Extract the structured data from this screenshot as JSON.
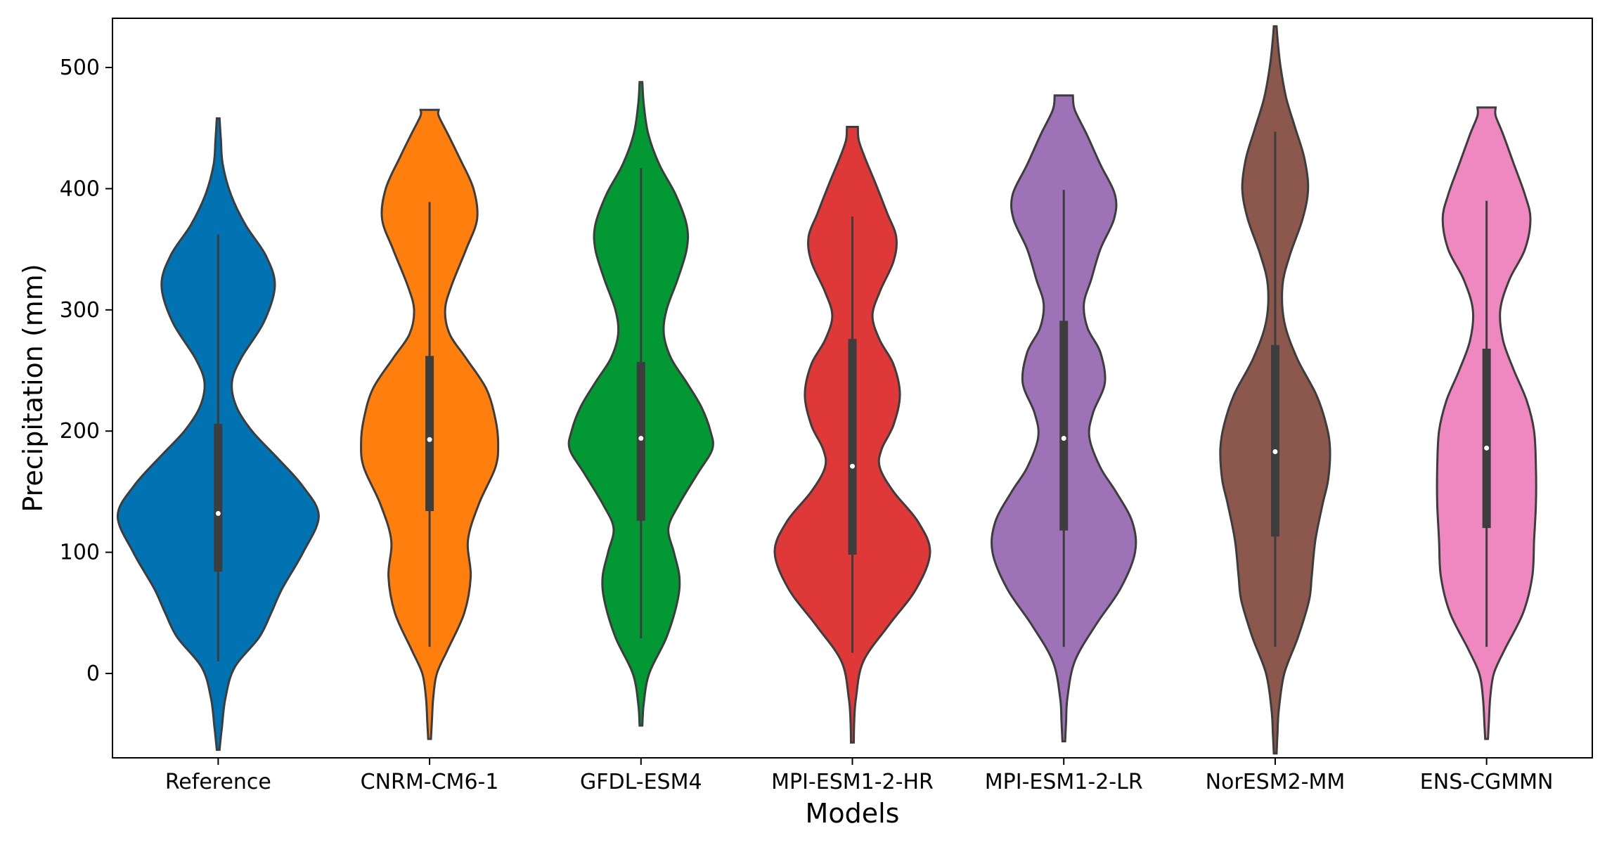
{
  "chart_data": {
    "type": "violin",
    "title": "",
    "xlabel": "Models",
    "ylabel": "Precipitation (mm)",
    "ylim": [
      -70,
      540
    ],
    "yticks": [
      0,
      100,
      200,
      300,
      400,
      500
    ],
    "ytick_labels": [
      "0",
      "100",
      "200",
      "300",
      "400",
      "500"
    ],
    "grid": false,
    "series": [
      {
        "name": "Reference",
        "color": "#0173b2",
        "min": -63,
        "max": 458,
        "whisker_low": 10,
        "whisker_high": 362,
        "q1": 84,
        "median": 132,
        "q3": 206,
        "density": [
          [
            -63,
            1.5
          ],
          [
            -45,
            4
          ],
          [
            -20,
            8
          ],
          [
            5,
            18
          ],
          [
            30,
            45
          ],
          [
            50,
            58
          ],
          [
            70,
            70
          ],
          [
            100,
            93
          ],
          [
            130,
            110
          ],
          [
            155,
            92
          ],
          [
            180,
            62
          ],
          [
            200,
            37
          ],
          [
            220,
            20
          ],
          [
            240,
            15
          ],
          [
            260,
            25
          ],
          [
            290,
            50
          ],
          [
            320,
            62
          ],
          [
            345,
            52
          ],
          [
            370,
            30
          ],
          [
            395,
            14
          ],
          [
            420,
            5
          ],
          [
            440,
            3
          ],
          [
            458,
            1.5
          ]
        ]
      },
      {
        "name": "CNRM-CM6-1",
        "color": "#ff7f0e",
        "min": -54,
        "max": 465,
        "whisker_low": 22,
        "whisker_high": 389,
        "q1": 134,
        "median": 193,
        "q3": 262,
        "density": [
          [
            -54,
            1.5
          ],
          [
            -40,
            2.5
          ],
          [
            -20,
            4
          ],
          [
            0,
            8
          ],
          [
            20,
            20
          ],
          [
            50,
            38
          ],
          [
            80,
            45
          ],
          [
            110,
            42
          ],
          [
            140,
            54
          ],
          [
            170,
            72
          ],
          [
            190,
            75
          ],
          [
            210,
            72
          ],
          [
            235,
            62
          ],
          [
            260,
            40
          ],
          [
            280,
            22
          ],
          [
            300,
            17
          ],
          [
            320,
            24
          ],
          [
            350,
            40
          ],
          [
            375,
            52
          ],
          [
            400,
            48
          ],
          [
            425,
            33
          ],
          [
            445,
            20
          ],
          [
            460,
            10
          ],
          [
            465,
            10
          ]
        ]
      },
      {
        "name": "GFDL-ESM4",
        "color": "#029833",
        "min": -43,
        "max": 488,
        "whisker_low": 29,
        "whisker_high": 417,
        "q1": 126,
        "median": 194,
        "q3": 257,
        "density": [
          [
            -43,
            1.5
          ],
          [
            -25,
            3
          ],
          [
            0,
            9
          ],
          [
            30,
            28
          ],
          [
            60,
            40
          ],
          [
            80,
            42
          ],
          [
            100,
            36
          ],
          [
            120,
            30
          ],
          [
            140,
            42
          ],
          [
            165,
            62
          ],
          [
            185,
            78
          ],
          [
            200,
            76
          ],
          [
            220,
            66
          ],
          [
            240,
            50
          ],
          [
            260,
            33
          ],
          [
            280,
            25
          ],
          [
            300,
            28
          ],
          [
            325,
            40
          ],
          [
            350,
            50
          ],
          [
            370,
            50
          ],
          [
            395,
            38
          ],
          [
            420,
            20
          ],
          [
            445,
            8
          ],
          [
            470,
            3
          ],
          [
            488,
            1.5
          ]
        ]
      },
      {
        "name": "MPI-ESM1-2-HR",
        "color": "#de3838",
        "min": -57,
        "max": 451,
        "whisker_low": 17,
        "whisker_high": 377,
        "q1": 98,
        "median": 171,
        "q3": 276,
        "density": [
          [
            -57,
            1.5
          ],
          [
            -40,
            2
          ],
          [
            -20,
            4
          ],
          [
            10,
            12
          ],
          [
            40,
            40
          ],
          [
            70,
            70
          ],
          [
            100,
            85
          ],
          [
            125,
            72
          ],
          [
            150,
            45
          ],
          [
            170,
            30
          ],
          [
            185,
            32
          ],
          [
            205,
            45
          ],
          [
            230,
            52
          ],
          [
            255,
            45
          ],
          [
            275,
            30
          ],
          [
            295,
            22
          ],
          [
            315,
            30
          ],
          [
            340,
            45
          ],
          [
            360,
            48
          ],
          [
            380,
            38
          ],
          [
            405,
            25
          ],
          [
            425,
            14
          ],
          [
            440,
            7
          ],
          [
            451,
            6
          ]
        ]
      },
      {
        "name": "MPI-ESM1-2-LR",
        "color": "#9d72b7",
        "min": -56,
        "max": 477,
        "whisker_low": 22,
        "whisker_high": 399,
        "q1": 118,
        "median": 194,
        "q3": 291,
        "density": [
          [
            -56,
            1.5
          ],
          [
            -40,
            2.5
          ],
          [
            -20,
            4
          ],
          [
            10,
            12
          ],
          [
            40,
            35
          ],
          [
            70,
            62
          ],
          [
            100,
            78
          ],
          [
            125,
            75
          ],
          [
            150,
            57
          ],
          [
            170,
            40
          ],
          [
            195,
            28
          ],
          [
            215,
            32
          ],
          [
            240,
            45
          ],
          [
            265,
            40
          ],
          [
            285,
            26
          ],
          [
            305,
            22
          ],
          [
            325,
            30
          ],
          [
            350,
            40
          ],
          [
            375,
            55
          ],
          [
            395,
            56
          ],
          [
            420,
            40
          ],
          [
            445,
            25
          ],
          [
            465,
            12
          ],
          [
            477,
            10
          ]
        ]
      },
      {
        "name": "NorESM2-MM",
        "color": "#8c574c",
        "min": -66,
        "max": 534,
        "whisker_low": 22,
        "whisker_high": 447,
        "q1": 113,
        "median": 183,
        "q3": 271,
        "density": [
          [
            -66,
            1.5
          ],
          [
            -50,
            2.5
          ],
          [
            -30,
            4
          ],
          [
            0,
            10
          ],
          [
            30,
            25
          ],
          [
            60,
            37
          ],
          [
            80,
            40
          ],
          [
            110,
            44
          ],
          [
            140,
            52
          ],
          [
            160,
            58
          ],
          [
            185,
            60
          ],
          [
            205,
            56
          ],
          [
            230,
            45
          ],
          [
            260,
            24
          ],
          [
            290,
            10
          ],
          [
            320,
            8
          ],
          [
            345,
            16
          ],
          [
            375,
            30
          ],
          [
            400,
            36
          ],
          [
            425,
            32
          ],
          [
            450,
            22
          ],
          [
            475,
            12
          ],
          [
            500,
            6
          ],
          [
            520,
            3
          ],
          [
            534,
            1.5
          ]
        ]
      },
      {
        "name": "ENS-CGMMN",
        "color": "#ef87c1",
        "min": -54,
        "max": 467,
        "whisker_low": 22,
        "whisker_high": 390,
        "q1": 120,
        "median": 186,
        "q3": 268,
        "density": [
          [
            -54,
            1.5
          ],
          [
            -40,
            2.5
          ],
          [
            -20,
            4
          ],
          [
            0,
            8
          ],
          [
            20,
            20
          ],
          [
            50,
            40
          ],
          [
            80,
            50
          ],
          [
            110,
            52
          ],
          [
            140,
            54
          ],
          [
            170,
            54
          ],
          [
            200,
            52
          ],
          [
            225,
            44
          ],
          [
            250,
            30
          ],
          [
            275,
            18
          ],
          [
            300,
            15
          ],
          [
            325,
            25
          ],
          [
            350,
            42
          ],
          [
            375,
            48
          ],
          [
            395,
            42
          ],
          [
            420,
            30
          ],
          [
            445,
            18
          ],
          [
            460,
            10
          ],
          [
            467,
            10
          ]
        ]
      }
    ]
  }
}
